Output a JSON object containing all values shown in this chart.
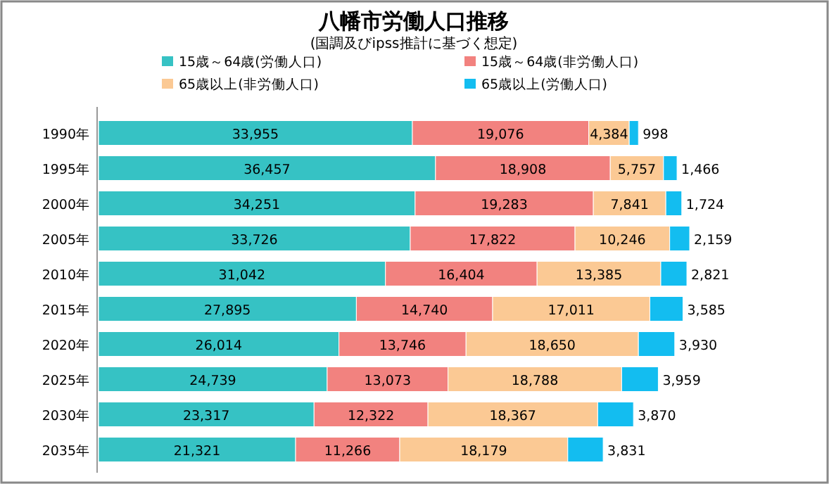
{
  "chart_data": {
    "type": "bar",
    "orientation": "horizontal",
    "stacked": true,
    "legend": "top",
    "title": "八幡市労働人口推移",
    "subtitle": "(国調及びipss推計に基づく想定)",
    "categories": [
      "1990年",
      "1995年",
      "2000年",
      "2005年",
      "2010年",
      "2015年",
      "2020年",
      "2025年",
      "2030年",
      "2035年"
    ],
    "series": [
      {
        "name": "15歳～64歳(労働人口)",
        "color": "#36c2c4",
        "values": [
          33955,
          36457,
          34251,
          33726,
          31042,
          27895,
          26014,
          24739,
          23317,
          21321
        ],
        "value_labels": [
          "33,955",
          "36,457",
          "34,251",
          "33,726",
          "31,042",
          "27,895",
          "26,014",
          "24,739",
          "23,317",
          "21,321"
        ]
      },
      {
        "name": "15歳～64歳(非労働人口)",
        "color": "#f2827f",
        "values": [
          19076,
          18908,
          19283,
          17822,
          16404,
          14740,
          13746,
          13073,
          12322,
          11266
        ],
        "value_labels": [
          "19,076",
          "18,908",
          "19,283",
          "17,822",
          "16,404",
          "14,740",
          "13,746",
          "13,073",
          "12,322",
          "11,266"
        ]
      },
      {
        "name": "65歳以上(非労働人口)",
        "color": "#fbc994",
        "values": [
          4384,
          5757,
          7841,
          10246,
          13385,
          17011,
          18650,
          18788,
          18367,
          18179
        ],
        "value_labels": [
          "4,384",
          "5,757",
          "7,841",
          "10,246",
          "13,385",
          "17,011",
          "18,650",
          "18,788",
          "18,367",
          "18,179"
        ]
      },
      {
        "name": "65歳以上(労働人口)",
        "color": "#13bdf0",
        "values": [
          998,
          1466,
          1724,
          2159,
          2821,
          3585,
          3930,
          3959,
          3870,
          3831
        ],
        "value_labels": [
          "998",
          "1,466",
          "1,724",
          "2,159",
          "2,821",
          "3,585",
          "3,930",
          "3,959",
          "3,870",
          "3,831"
        ]
      }
    ]
  }
}
